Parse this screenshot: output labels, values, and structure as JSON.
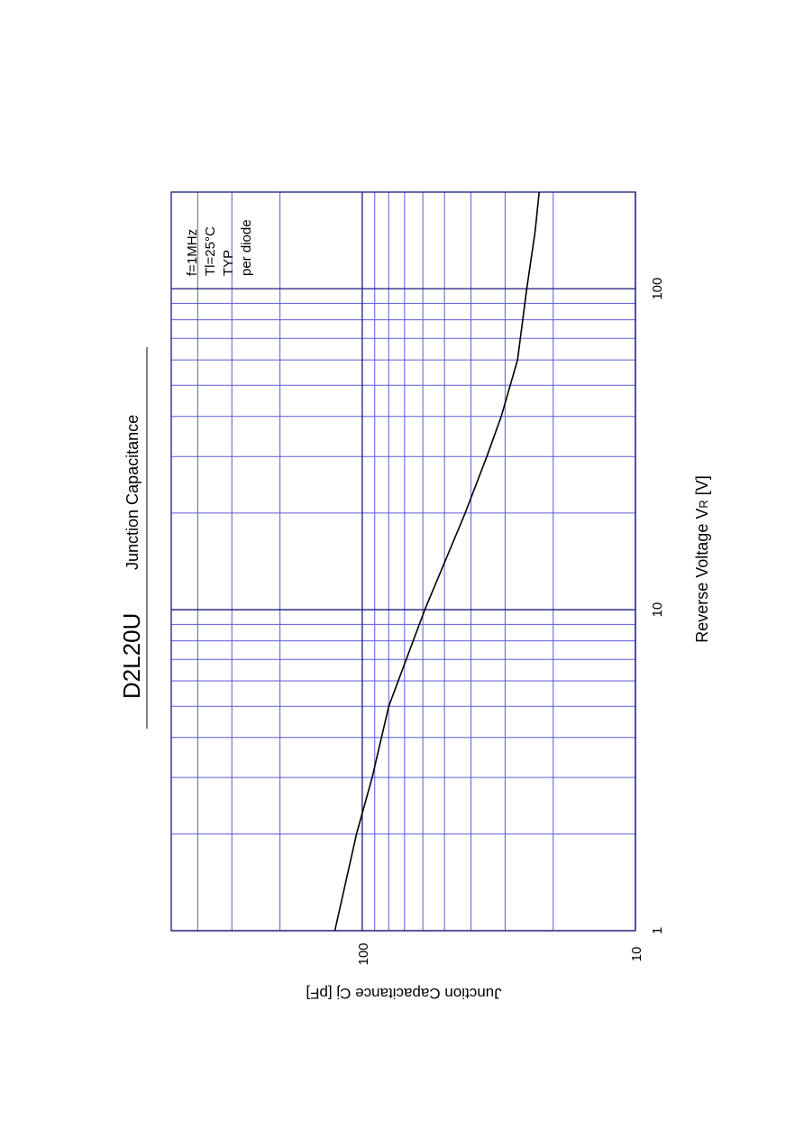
{
  "chart_data": {
    "type": "line",
    "title": "D2L20U",
    "subtitle": "Junction Capacitance",
    "annotations": [
      "f=1MHz",
      "Tl=25°C",
      "TYP",
      "per diode"
    ],
    "x_label": {
      "text": "Reverse Voltage  V",
      "sub": "R",
      "unit": " [V]"
    },
    "y_label": "Junction Capacitance  Cj  [pF]",
    "x": [
      1,
      2,
      3,
      5,
      10,
      20,
      30,
      40,
      60,
      100,
      150,
      200
    ],
    "series": [
      {
        "name": "Cj",
        "color": "#000000",
        "values": [
          126,
          105,
          92,
          80,
          59,
          42,
          35,
          31,
          27,
          25,
          23.3,
          22.5
        ]
      }
    ],
    "xlim": [
      1,
      200
    ],
    "ylim": [
      10,
      500
    ],
    "x_log": true,
    "y_log": true,
    "xticks": [
      1,
      10,
      100
    ],
    "yticks": [
      10,
      100
    ],
    "x_minor_grid": [
      2,
      3,
      4,
      5,
      6,
      7,
      8,
      9,
      20,
      30,
      40,
      50,
      60,
      70,
      80,
      90
    ],
    "y_minor_grid": [
      20,
      30,
      40,
      50,
      60,
      70,
      80,
      90,
      200,
      300,
      400
    ],
    "grid": true,
    "major_grid_color": "#1a1a80",
    "minor_grid_color": "#5a5ad8"
  }
}
